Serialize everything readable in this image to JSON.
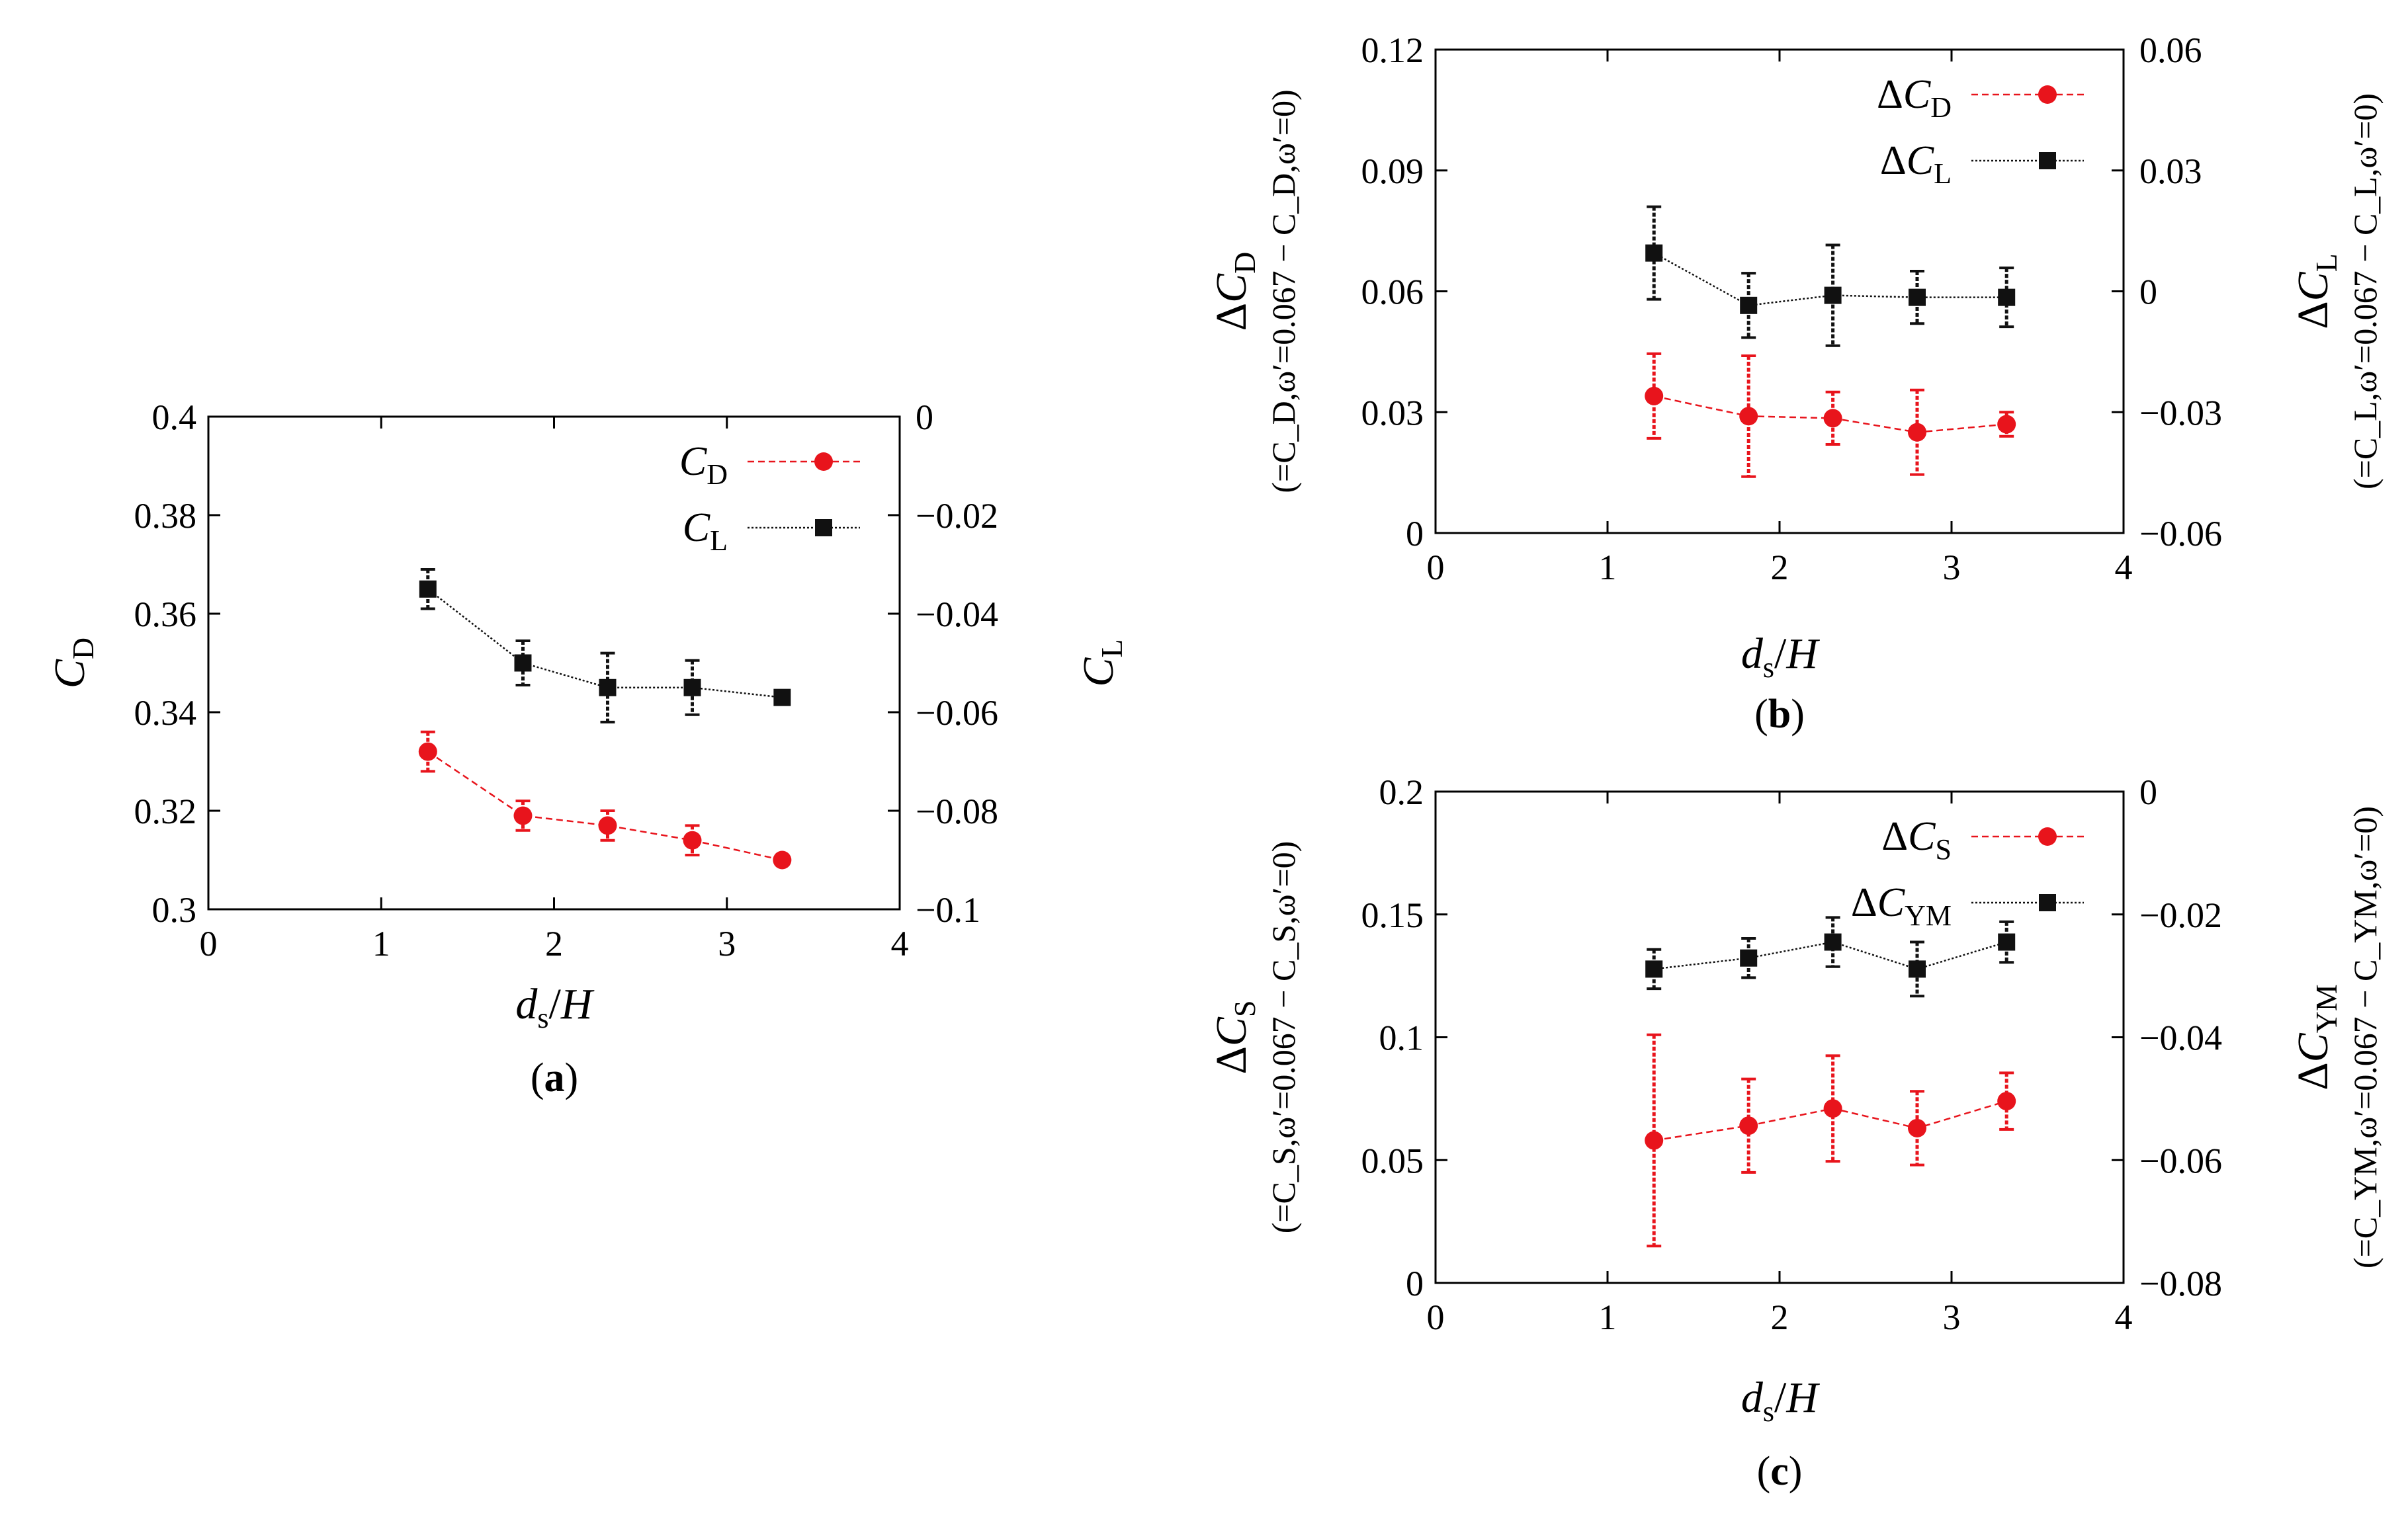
{
  "colors": {
    "red": "#e8141c",
    "black": "#111111"
  },
  "chart_data": [
    {
      "id": "a",
      "type": "line",
      "panel_label": "a",
      "x": [
        1.27,
        1.82,
        2.31,
        2.8,
        3.32
      ],
      "xlim": [
        0,
        4
      ],
      "xticks": [
        0,
        1,
        2,
        3,
        4
      ],
      "xtick_labels": [
        "0",
        "1",
        "2",
        "3",
        "4"
      ],
      "xlabel_main": "d",
      "xlabel_sub": "s",
      "xlabel_tail": "/H",
      "left_axis": {
        "lim": [
          0.3,
          0.4
        ],
        "ticks": [
          0.3,
          0.32,
          0.34,
          0.36,
          0.38,
          0.4
        ],
        "tick_labels": [
          "0.3",
          "0.32",
          "0.34",
          "0.36",
          "0.38",
          "0.4"
        ],
        "label_main": "C",
        "label_sub": "D",
        "label_extra": ""
      },
      "right_axis": {
        "lim": [
          -0.1,
          0
        ],
        "ticks": [
          -0.1,
          -0.08,
          -0.06,
          -0.04,
          -0.02,
          0
        ],
        "tick_labels": [
          "−0.1",
          "−0.08",
          "−0.06",
          "−0.04",
          "−0.02",
          "0"
        ],
        "label_main": "C",
        "label_sub": "L",
        "label_extra": ""
      },
      "series": [
        {
          "name_main": "C",
          "name_sub": "D",
          "axis": "left",
          "marker": "circle",
          "color": "#e8141c",
          "values": [
            0.332,
            0.319,
            0.317,
            0.314,
            0.31
          ],
          "errors": [
            0.004,
            0.003,
            0.003,
            0.003,
            0.0
          ]
        },
        {
          "name_main": "C",
          "name_sub": "L",
          "axis": "right",
          "marker": "square",
          "color": "#111111",
          "values": [
            -0.035,
            -0.05,
            -0.055,
            -0.055,
            -0.057
          ],
          "errors": [
            0.004,
            0.0045,
            0.007,
            0.0055,
            0.0
          ]
        }
      ]
    },
    {
      "id": "b",
      "type": "line",
      "panel_label": "b",
      "x": [
        1.27,
        1.82,
        2.31,
        2.8,
        3.32
      ],
      "xlim": [
        0,
        4
      ],
      "xticks": [
        0,
        1,
        2,
        3,
        4
      ],
      "xtick_labels": [
        "0",
        "1",
        "2",
        "3",
        "4"
      ],
      "xlabel_main": "d",
      "xlabel_sub": "s",
      "xlabel_tail": "/H",
      "left_axis": {
        "lim": [
          0,
          0.12
        ],
        "ticks": [
          0,
          0.03,
          0.06,
          0.09,
          0.12
        ],
        "tick_labels": [
          "0",
          "0.03",
          "0.06",
          "0.09",
          "0.12"
        ],
        "label_main": "ΔC",
        "label_sub": "D",
        "label_extra": "(=C_D,ω′=0.067 − C_D,ω′=0)"
      },
      "right_axis": {
        "lim": [
          -0.06,
          0.06
        ],
        "ticks": [
          -0.06,
          -0.03,
          0,
          0.03,
          0.06
        ],
        "tick_labels": [
          "−0.06",
          "−0.03",
          "0",
          "0.03",
          "0.06"
        ],
        "label_main": "ΔC",
        "label_sub": "L",
        "label_extra": "(=C_L,ω′=0.067 − C_L,ω′=0)"
      },
      "series": [
        {
          "name_main": "ΔC",
          "name_sub": "D",
          "axis": "left",
          "marker": "circle",
          "color": "#e8141c",
          "values": [
            0.034,
            0.029,
            0.0285,
            0.025,
            0.027
          ],
          "errors": [
            0.0105,
            0.015,
            0.0065,
            0.0105,
            0.003
          ]
        },
        {
          "name_main": "ΔC",
          "name_sub": "L",
          "axis": "right",
          "marker": "square",
          "color": "#111111",
          "values": [
            0.0095,
            -0.0035,
            -0.001,
            -0.0015,
            -0.0015
          ],
          "errors": [
            0.0115,
            0.008,
            0.0125,
            0.0065,
            0.0073
          ]
        }
      ]
    },
    {
      "id": "c",
      "type": "line",
      "panel_label": "c",
      "x": [
        1.27,
        1.82,
        2.31,
        2.8,
        3.32
      ],
      "xlim": [
        0,
        4
      ],
      "xticks": [
        0,
        1,
        2,
        3,
        4
      ],
      "xtick_labels": [
        "0",
        "1",
        "2",
        "3",
        "4"
      ],
      "xlabel_main": "d",
      "xlabel_sub": "s",
      "xlabel_tail": "/H",
      "left_axis": {
        "lim": [
          0,
          0.2
        ],
        "ticks": [
          0,
          0.05,
          0.1,
          0.15,
          0.2
        ],
        "tick_labels": [
          "0",
          "0.05",
          "0.1",
          "0.15",
          "0.2"
        ],
        "label_main": "ΔC",
        "label_sub": "S",
        "label_extra": "(=C_S,ω′=0.067 − C_S,ω′=0)"
      },
      "right_axis": {
        "lim": [
          -0.08,
          0
        ],
        "ticks": [
          -0.08,
          -0.06,
          -0.04,
          -0.02,
          0
        ],
        "tick_labels": [
          "−0.08",
          "−0.06",
          "−0.04",
          "−0.02",
          "0"
        ],
        "label_main": "ΔC",
        "label_sub": "YM",
        "label_extra": "(=C_YM,ω′=0.067 − C_YM,ω′=0)"
      },
      "series": [
        {
          "name_main": "ΔC",
          "name_sub": "S",
          "axis": "left",
          "marker": "circle",
          "color": "#e8141c",
          "values": [
            0.058,
            0.064,
            0.071,
            0.063,
            0.074
          ],
          "errors": [
            0.043,
            0.019,
            0.0215,
            0.015,
            0.0115
          ]
        },
        {
          "name_main": "ΔC",
          "name_sub": "YM",
          "axis": "right",
          "marker": "square",
          "color": "#111111",
          "values": [
            -0.0289,
            -0.0271,
            -0.0245,
            -0.0289,
            -0.0245
          ],
          "errors": [
            0.0032,
            0.0032,
            0.004,
            0.0044,
            0.0033
          ]
        }
      ]
    }
  ]
}
